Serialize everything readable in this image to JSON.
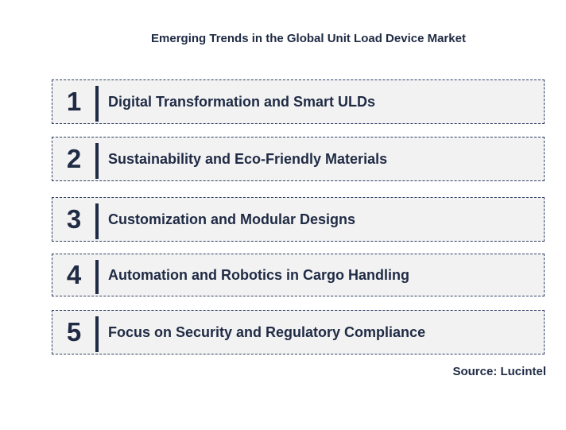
{
  "title": "Emerging Trends in the Global Unit Load Device Market",
  "trends": [
    {
      "number": "1",
      "label": "Digital Transformation and Smart ULDs"
    },
    {
      "number": "2",
      "label": "Sustainability and Eco-Friendly Materials"
    },
    {
      "number": "3",
      "label": "Customization and Modular Designs"
    },
    {
      "number": "4",
      "label": "Automation and Robotics in Cargo Handling"
    },
    {
      "number": "5",
      "label": "Focus on Security and Regulatory Compliance"
    }
  ],
  "source": "Source: Lucintel",
  "colors": {
    "text": "#1f2a44",
    "box_fill": "#f2f2f2",
    "box_border": "#2d3e63"
  }
}
